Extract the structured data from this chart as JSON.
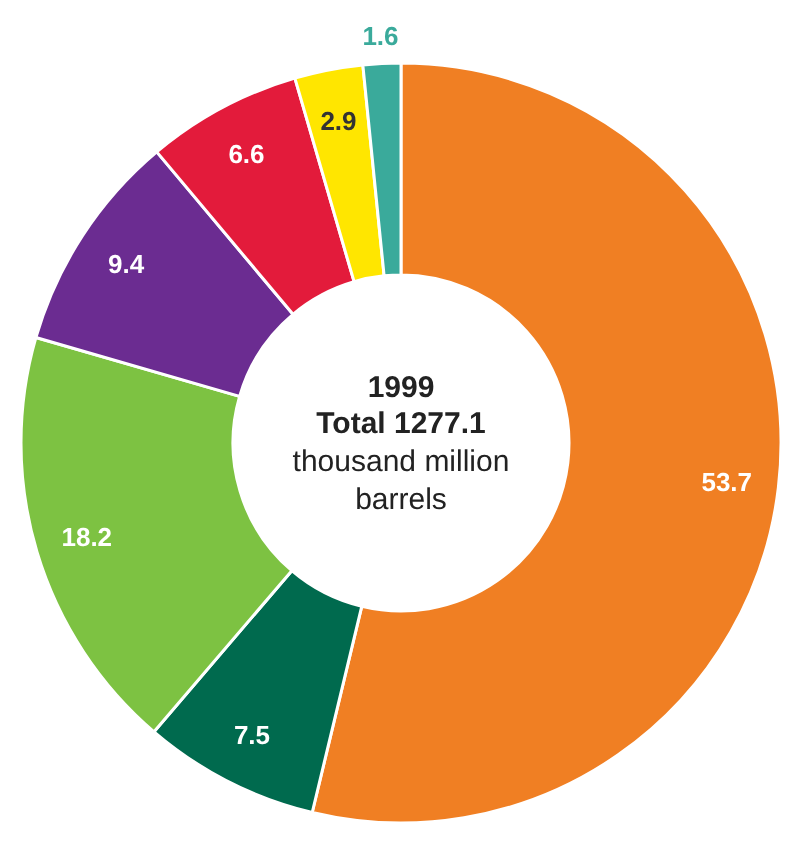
{
  "chart_data": {
    "type": "donut",
    "title": "1999",
    "annotations": [
      "Total 1277.1",
      "thousand million barrels"
    ],
    "categories": [
      null,
      null,
      null,
      null,
      null,
      null,
      null
    ],
    "values": [
      53.7,
      7.5,
      18.2,
      9.4,
      6.6,
      2.9,
      1.6
    ],
    "colors": [
      "#f07f23",
      "#006a4e",
      "#7dc242",
      "#6b2c91",
      "#e31b3b",
      "#ffe600",
      "#3aaa9b"
    ],
    "data_labels": true
  }
}
